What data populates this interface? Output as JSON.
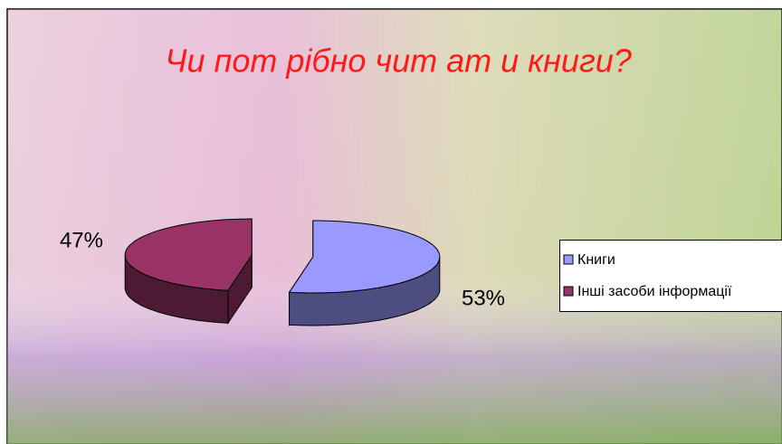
{
  "chart_data": {
    "type": "pie3d",
    "title": "Чи пот рібно чит ат и книги?",
    "categories": [
      "Книги",
      "Інші засоби інформації"
    ],
    "values": [
      53,
      47
    ],
    "value_labels": [
      "53%",
      "47%"
    ],
    "colors": [
      "#9999ff",
      "#993366"
    ],
    "legend": "right"
  }
}
